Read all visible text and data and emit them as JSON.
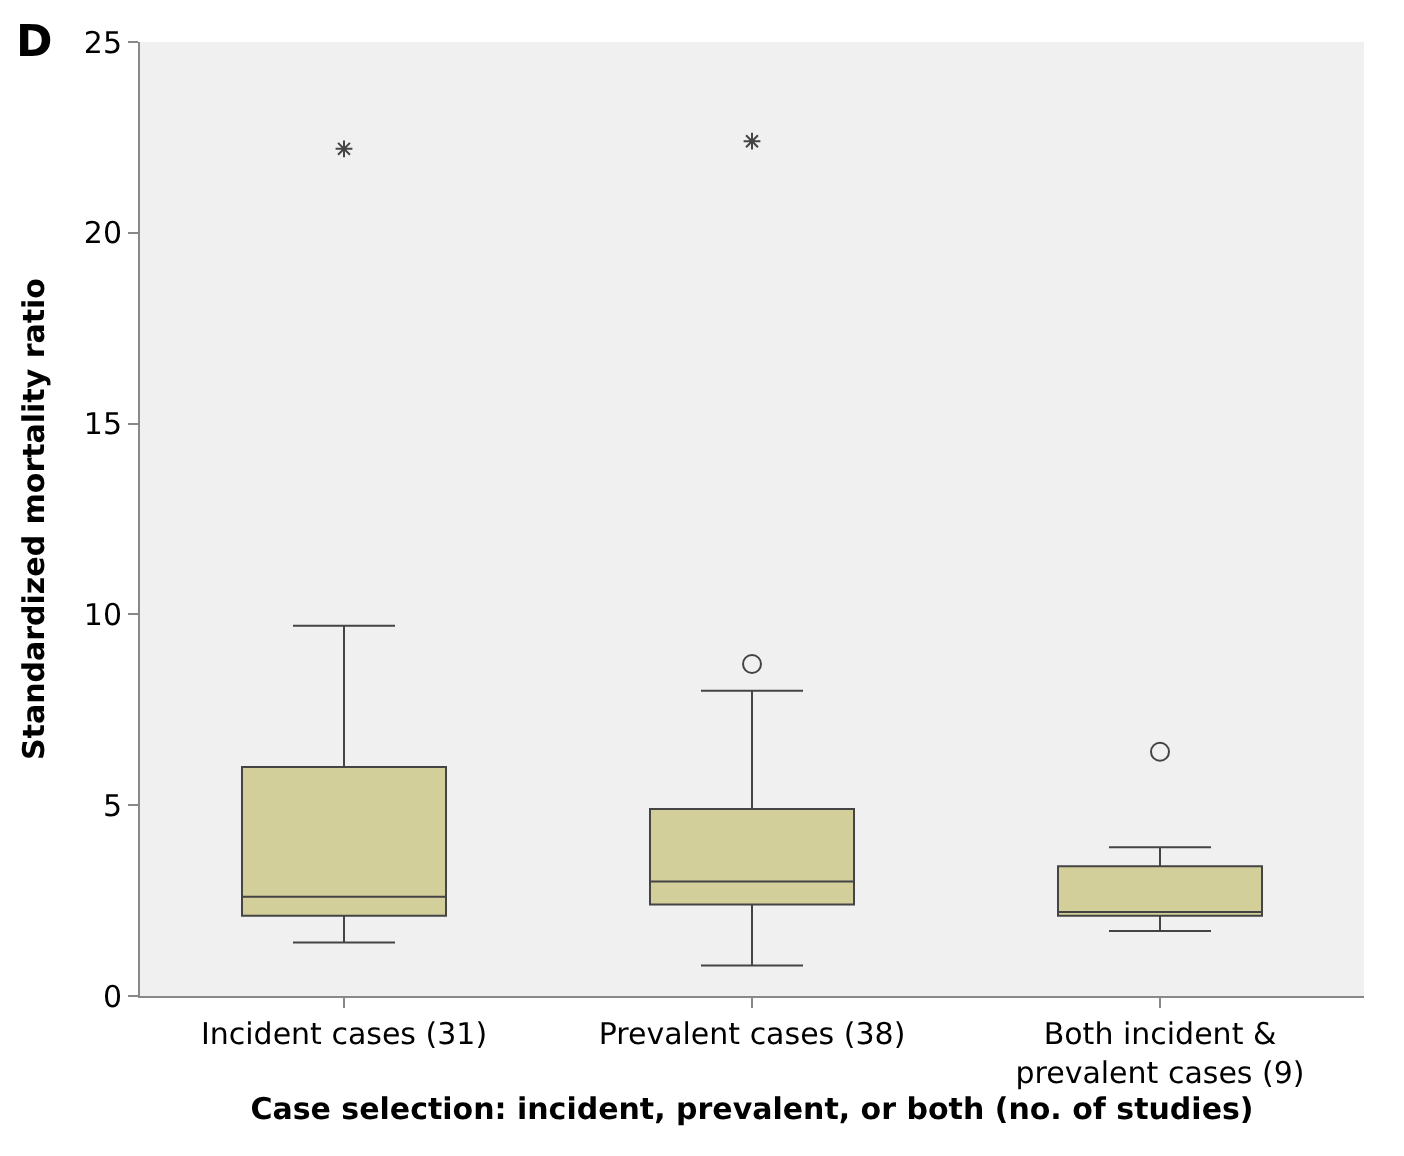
{
  "chart_data": {
    "type": "box",
    "title": "D",
    "xlabel": "Case selection: incident, prevalent, or both (no. of studies)",
    "ylabel": "Standardized mortality ratio",
    "categories": [
      "Incident cases (31)",
      "Prevalent cases (38)",
      "Both incident &\nprevalent cases (9)"
    ],
    "boxes": [
      {
        "low": 1.4,
        "q1": 2.1,
        "median": 2.6,
        "q3": 6.0,
        "high": 9.7,
        "outliers": [
          22.2
        ]
      },
      {
        "low": 0.8,
        "q1": 2.4,
        "median": 3.0,
        "q3": 4.9,
        "high": 8.0,
        "outliers": [
          8.7,
          22.4
        ]
      },
      {
        "low": 1.7,
        "q1": 2.1,
        "median": 2.2,
        "q3": 3.4,
        "high": 3.9,
        "outliers": [
          6.4
        ]
      }
    ],
    "color": "#d3cf9a",
    "ylim": [
      0,
      25
    ],
    "yticks": [
      0,
      5,
      10,
      15,
      20,
      25
    ]
  }
}
